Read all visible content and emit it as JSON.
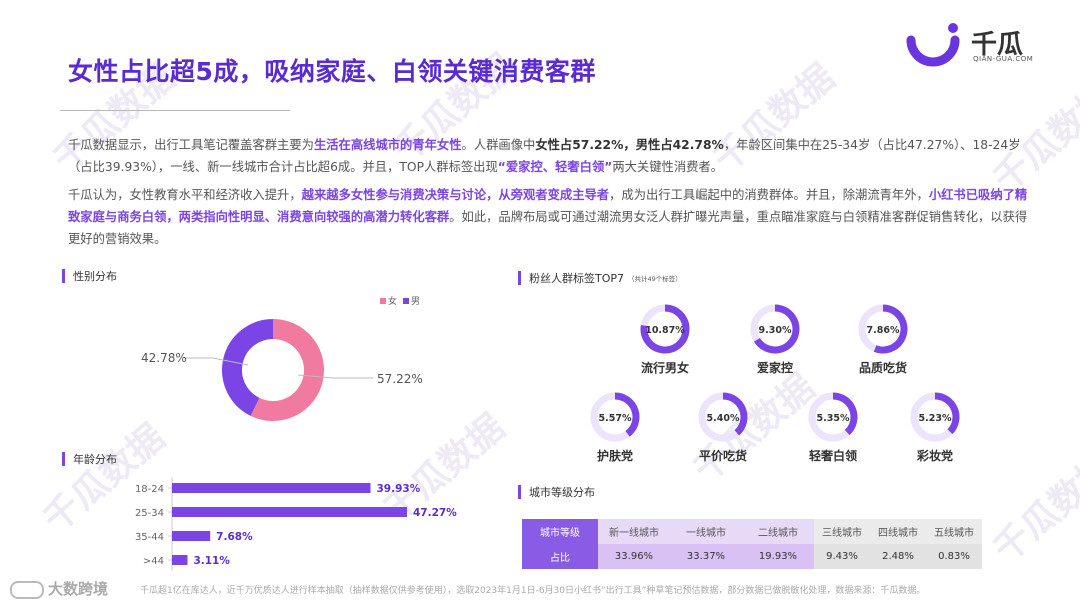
{
  "title": "女性占比超5成，吸纳家庭、白领关键消费客群",
  "logo": {
    "name": "千瓜",
    "sub": "QIAN-GUA.COM"
  },
  "paragraph1": {
    "p1": "千瓜数据显示，出行工具笔记覆盖客群主要为",
    "p2": "生活在高线城市的青年女性",
    "p3": "。人群画像中",
    "p4": "女性占57.22%，男性占42.78%",
    "p5": "，年龄区间集中在25-34岁（占比47.27%）、18-24岁（占比39.93%），一线、新一线城市合计占比超6成。并且，TOP人群标签出现",
    "p6": "“爱家控、轻奢白领”",
    "p7": "两大关键性消费者。"
  },
  "paragraph2": {
    "p1": "千瓜认为，女性教育水平和经济收入提升，",
    "p2": "越来越多女性参与消费决策与讨论，从旁观者变成主导者",
    "p3": "，成为出行工具崛起中的消费群体。并且，除潮流青年外，",
    "p4": "小红书已吸纳了精致家庭与商务白领，两类指向性明显、消费意向较强的高潜力转化客群",
    "p5": "。如此，品牌布局或可通过潮流男女泛人群扩曝光声量，重点瞄准家庭与白领精准客群促销售转化，以获得更好的营销效果。"
  },
  "sections": {
    "gender": "性别分布",
    "age": "年龄分布",
    "tags": "粉丝人群标签TOP7",
    "tags_note": "（共计49个标签）",
    "city": "城市等级分布"
  },
  "colors": {
    "female": "#f07aa0",
    "male": "#7b45e6",
    "accent": "#5a2bd0",
    "ring_track": "#ece4fa"
  },
  "chart_data": [
    {
      "type": "pie",
      "title": "性别分布",
      "legend": [
        "女",
        "男"
      ],
      "legend_position": "top-right",
      "slices": [
        {
          "name": "女",
          "value": 57.22,
          "label": "57.22%"
        },
        {
          "name": "男",
          "value": 42.78,
          "label": "42.78%"
        }
      ]
    },
    {
      "type": "bar",
      "orientation": "horizontal",
      "title": "年龄分布",
      "categories": [
        "18-24",
        "25-34",
        "35-44",
        ">44"
      ],
      "values": [
        39.93,
        47.27,
        7.68,
        3.11
      ],
      "labels": [
        "39.93%",
        "47.27%",
        "7.68%",
        "3.11%"
      ],
      "xlim": [
        0,
        50
      ]
    },
    {
      "type": "pie",
      "title": "粉丝人群标签TOP7",
      "items": [
        {
          "name": "流行男女",
          "value": 10.87,
          "label": "10.87%"
        },
        {
          "name": "爱家控",
          "value": 9.3,
          "label": "9.30%"
        },
        {
          "name": "品质吃货",
          "value": 7.86,
          "label": "7.86%"
        },
        {
          "name": "护肤党",
          "value": 5.57,
          "label": "5.57%"
        },
        {
          "name": "平价吃货",
          "value": 5.4,
          "label": "5.40%"
        },
        {
          "name": "轻奢白领",
          "value": 5.35,
          "label": "5.35%"
        },
        {
          "name": "彩妆党",
          "value": 5.23,
          "label": "5.23%"
        }
      ]
    },
    {
      "type": "table",
      "title": "城市等级分布",
      "header_label": "城市等级",
      "row_label": "占比",
      "columns": [
        "新一线城市",
        "一线城市",
        "二线城市",
        "三线城市",
        "四线城市",
        "五线城市"
      ],
      "values": [
        "33.96%",
        "33.37%",
        "19.93%",
        "9.43%",
        "2.48%",
        "0.83%"
      ]
    }
  ],
  "footer": {
    "text": "千瓜超1亿在库达人，近千万优质达人进行样本抽取（抽样数据仅供参考使用），选取2023年1月1日-6月30日小红书“出行工具”种草笔记预估数据，部分数据已做脱敏化处理，数据来源：千瓜数据。",
    "badge": "大数跨境"
  }
}
